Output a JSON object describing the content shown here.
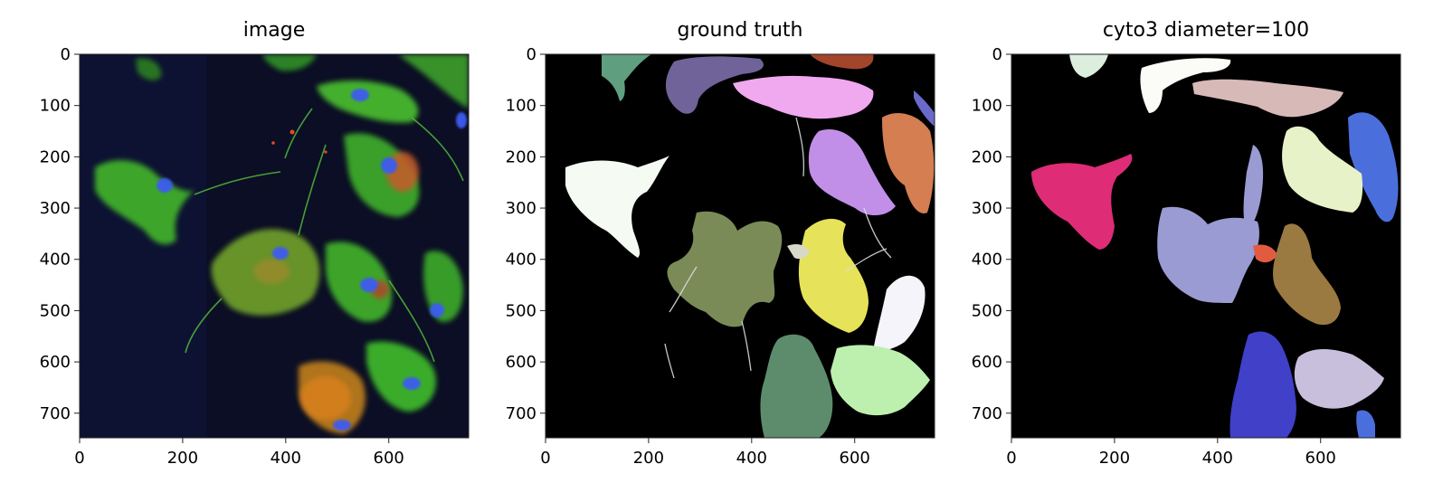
{
  "panels": [
    {
      "id": "image",
      "title": "image",
      "kind": "fluorescence-microscopy",
      "background": "#0b0e24",
      "colors": {
        "cytoskeleton": "#3fbf2a",
        "actin_red": "#d9601c",
        "nuclei": "#3d5cf0"
      }
    },
    {
      "id": "ground-truth",
      "title": "ground truth",
      "kind": "segmentation-masks",
      "background": "#000000",
      "mask_colors": [
        "#5f9f80",
        "#6f6399",
        "#a3452b",
        "#f0a8ef",
        "#d47e52",
        "#c18fe8",
        "#f5fbf2",
        "#7a8b57",
        "#e6e35a",
        "#f4f4fa",
        "#5d8c6c",
        "#bdf0ae",
        "#d8d8c8",
        "#6a6acb"
      ]
    },
    {
      "id": "cyto3",
      "title": "cyto3 diameter=100",
      "kind": "segmentation-masks",
      "background": "#000000",
      "mask_colors": [
        "#dceedd",
        "#fbfbf7",
        "#d7b9b8",
        "#4a6fdc",
        "#e8f2c8",
        "#de2c77",
        "#9a9bd3",
        "#e35b3f",
        "#9a7a41",
        "#4040c9",
        "#c8bfdc"
      ]
    }
  ],
  "axes": {
    "x_ticks": [
      "0",
      "200",
      "400",
      "600"
    ],
    "y_ticks": [
      "0",
      "100",
      "200",
      "300",
      "400",
      "500",
      "600",
      "700"
    ],
    "x_range": [
      0,
      755
    ],
    "y_range": [
      0,
      748
    ]
  }
}
